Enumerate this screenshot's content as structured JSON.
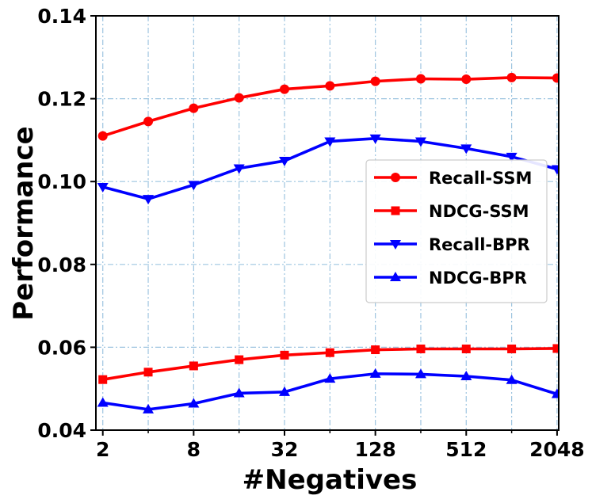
{
  "chart_data": {
    "type": "line",
    "title": "",
    "xlabel": "#Negatives",
    "ylabel": "Performance",
    "x_scale": "log2",
    "x": [
      2,
      4,
      8,
      16,
      32,
      64,
      128,
      256,
      512,
      1024,
      2048
    ],
    "xticks": [
      2,
      8,
      32,
      128,
      512,
      2048
    ],
    "xtick_labels": [
      "2",
      "8",
      "32",
      "128",
      "512",
      "2048"
    ],
    "xlim": [
      1.8,
      2100
    ],
    "ylim": [
      0.04,
      0.14
    ],
    "yticks": [
      0.04,
      0.06,
      0.08,
      0.1,
      0.12,
      0.14
    ],
    "ytick_labels": [
      "0.04",
      "0.06",
      "0.08",
      "0.10",
      "0.12",
      "0.14"
    ],
    "grid": true,
    "legend_position": "center-right",
    "series": [
      {
        "name": "Recall-SSM",
        "color": "#ff0000",
        "marker": "circle",
        "values": [
          0.111,
          0.1145,
          0.1177,
          0.1202,
          0.1223,
          0.1231,
          0.1242,
          0.1248,
          0.1247,
          0.1251,
          0.125
        ]
      },
      {
        "name": "NDCG-SSM",
        "color": "#ff0000",
        "marker": "square",
        "values": [
          0.0522,
          0.054,
          0.0555,
          0.057,
          0.0581,
          0.0587,
          0.0594,
          0.0596,
          0.0596,
          0.0596,
          0.0597
        ]
      },
      {
        "name": "Recall-BPR",
        "color": "#0000ff",
        "marker": "triangle-down",
        "values": [
          0.0987,
          0.0958,
          0.0992,
          0.1032,
          0.105,
          0.1097,
          0.1104,
          0.1097,
          0.108,
          0.106,
          0.103
        ]
      },
      {
        "name": "NDCG-BPR",
        "color": "#0000ff",
        "marker": "triangle-up",
        "values": [
          0.0466,
          0.045,
          0.0464,
          0.0489,
          0.0492,
          0.0524,
          0.0536,
          0.0535,
          0.053,
          0.0521,
          0.0487
        ]
      }
    ]
  }
}
